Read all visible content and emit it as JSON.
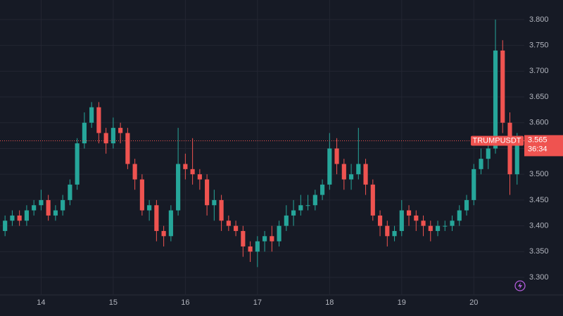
{
  "chart_data": {
    "type": "candlestick",
    "symbol": "TRUMPUSDT",
    "last_price": 3.565,
    "countdown": "36:34",
    "up_color": "#26a69a",
    "down_color": "#ef5350",
    "grid": true,
    "xlim": [
      13.43,
      20.7
    ],
    "ylim": [
      3.266,
      3.838
    ],
    "xticks": [
      14,
      15,
      16,
      17,
      18,
      19,
      20
    ],
    "yticks": [
      {
        "value": 3.3,
        "label": "3.300"
      },
      {
        "value": 3.35,
        "label": "3.350"
      },
      {
        "value": 3.4,
        "label": "3.400"
      },
      {
        "value": 3.45,
        "label": "3.450"
      },
      {
        "value": 3.5,
        "label": "3.500"
      },
      {
        "value": 3.55,
        "label": "3.550"
      },
      {
        "value": 3.6,
        "label": "3.600"
      },
      {
        "value": 3.65,
        "label": "3.650"
      },
      {
        "value": 3.7,
        "label": "3.700"
      },
      {
        "value": 3.75,
        "label": "3.750"
      },
      {
        "value": 3.8,
        "label": "3.800"
      }
    ],
    "x": [
      13.5,
      13.6,
      13.7,
      13.8,
      13.9,
      14.0,
      14.1,
      14.2,
      14.3,
      14.4,
      14.5,
      14.6,
      14.7,
      14.8,
      14.9,
      15.0,
      15.1,
      15.2,
      15.3,
      15.4,
      15.5,
      15.6,
      15.7,
      15.8,
      15.9,
      16.0,
      16.1,
      16.2,
      16.3,
      16.4,
      16.5,
      16.6,
      16.7,
      16.8,
      16.9,
      17.0,
      17.1,
      17.2,
      17.3,
      17.4,
      17.5,
      17.6,
      17.7,
      17.8,
      17.9,
      18.0,
      18.1,
      18.2,
      18.3,
      18.4,
      18.5,
      18.6,
      18.7,
      18.8,
      18.9,
      19.0,
      19.1,
      19.2,
      19.3,
      19.4,
      19.5,
      19.6,
      19.7,
      19.8,
      19.9,
      20.0,
      20.1,
      20.2,
      20.3,
      20.4,
      20.5,
      20.6
    ],
    "open": [
      3.39,
      3.41,
      3.42,
      3.41,
      3.43,
      3.44,
      3.45,
      3.42,
      3.43,
      3.45,
      3.48,
      3.56,
      3.6,
      3.63,
      3.58,
      3.56,
      3.59,
      3.58,
      3.52,
      3.49,
      3.43,
      3.44,
      3.39,
      3.38,
      3.43,
      3.52,
      3.51,
      3.5,
      3.49,
      3.44,
      3.45,
      3.41,
      3.4,
      3.39,
      3.36,
      3.35,
      3.37,
      3.38,
      3.37,
      3.4,
      3.42,
      3.43,
      3.44,
      3.44,
      3.46,
      3.48,
      3.55,
      3.52,
      3.49,
      3.5,
      3.52,
      3.48,
      3.42,
      3.4,
      3.38,
      3.39,
      3.43,
      3.42,
      3.41,
      3.4,
      3.39,
      3.4,
      3.4,
      3.41,
      3.43,
      3.45,
      3.51,
      3.53,
      3.55,
      3.74,
      3.6,
      3.5
    ],
    "high": [
      3.42,
      3.43,
      3.43,
      3.44,
      3.45,
      3.47,
      3.46,
      3.44,
      3.46,
      3.49,
      3.57,
      3.62,
      3.64,
      3.64,
      3.59,
      3.61,
      3.6,
      3.59,
      3.53,
      3.5,
      3.45,
      3.45,
      3.4,
      3.44,
      3.59,
      3.54,
      3.57,
      3.51,
      3.5,
      3.47,
      3.46,
      3.42,
      3.41,
      3.4,
      3.37,
      3.38,
      3.39,
      3.4,
      3.41,
      3.44,
      3.45,
      3.46,
      3.46,
      3.47,
      3.49,
      3.58,
      3.57,
      3.53,
      3.52,
      3.59,
      3.53,
      3.49,
      3.43,
      3.41,
      3.4,
      3.45,
      3.44,
      3.43,
      3.42,
      3.41,
      3.41,
      3.41,
      3.42,
      3.44,
      3.46,
      3.52,
      3.55,
      3.56,
      3.8,
      3.76,
      3.62,
      3.58
    ],
    "low": [
      3.38,
      3.4,
      3.4,
      3.4,
      3.42,
      3.43,
      3.41,
      3.41,
      3.42,
      3.44,
      3.47,
      3.55,
      3.59,
      3.56,
      3.54,
      3.55,
      3.56,
      3.51,
      3.47,
      3.42,
      3.41,
      3.37,
      3.36,
      3.37,
      3.42,
      3.49,
      3.48,
      3.47,
      3.42,
      3.41,
      3.39,
      3.39,
      3.38,
      3.34,
      3.33,
      3.32,
      3.35,
      3.35,
      3.36,
      3.39,
      3.4,
      3.42,
      3.43,
      3.43,
      3.45,
      3.47,
      3.5,
      3.47,
      3.47,
      3.49,
      3.46,
      3.41,
      3.38,
      3.36,
      3.37,
      3.38,
      3.4,
      3.39,
      3.38,
      3.37,
      3.38,
      3.39,
      3.39,
      3.4,
      3.42,
      3.44,
      3.5,
      3.51,
      3.54,
      3.58,
      3.46,
      3.48
    ],
    "close": [
      3.41,
      3.42,
      3.41,
      3.43,
      3.44,
      3.45,
      3.42,
      3.43,
      3.45,
      3.48,
      3.56,
      3.6,
      3.63,
      3.58,
      3.56,
      3.59,
      3.58,
      3.52,
      3.49,
      3.43,
      3.44,
      3.39,
      3.38,
      3.43,
      3.52,
      3.51,
      3.5,
      3.49,
      3.44,
      3.45,
      3.41,
      3.4,
      3.39,
      3.36,
      3.35,
      3.37,
      3.38,
      3.37,
      3.4,
      3.42,
      3.43,
      3.44,
      3.44,
      3.46,
      3.48,
      3.55,
      3.52,
      3.49,
      3.5,
      3.52,
      3.48,
      3.42,
      3.4,
      3.38,
      3.39,
      3.43,
      3.42,
      3.41,
      3.4,
      3.39,
      3.4,
      3.4,
      3.41,
      3.43,
      3.45,
      3.51,
      3.53,
      3.55,
      3.74,
      3.6,
      3.5,
      3.565
    ]
  }
}
